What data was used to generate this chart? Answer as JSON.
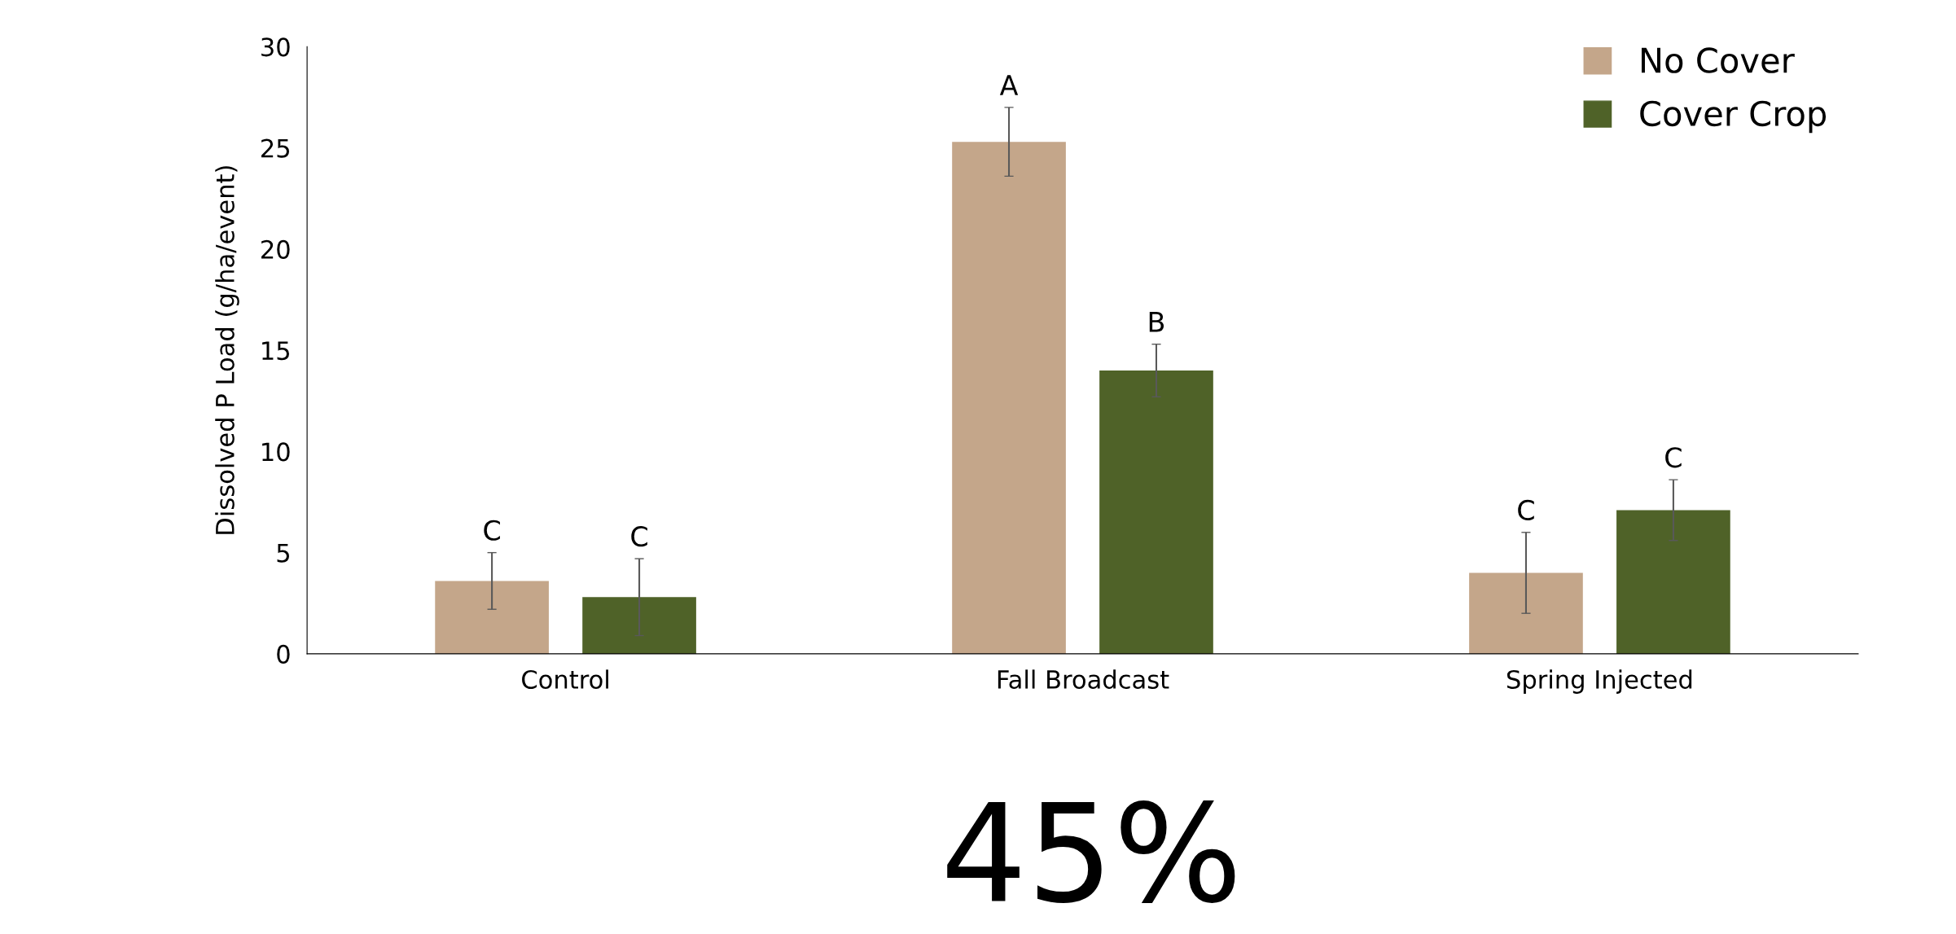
{
  "chart_data": {
    "type": "bar",
    "ylabel": "Dissolved P Load (g/ha/event)",
    "categories": [
      "Control",
      "Fall Broadcast",
      "Spring Injected"
    ],
    "series": [
      {
        "name": "No Cover",
        "color": "#c4a68a",
        "values": [
          3.6,
          25.3,
          4.0
        ],
        "errors": [
          1.4,
          1.7,
          2.0
        ]
      },
      {
        "name": "Cover Crop",
        "color": "#4f6228",
        "values": [
          2.8,
          14.0,
          7.1
        ],
        "errors": [
          1.9,
          1.3,
          1.5
        ]
      }
    ],
    "ylim": [
      0,
      30
    ],
    "yticks": [
      0,
      5,
      10,
      15,
      20,
      25,
      30
    ],
    "grid": false,
    "legend": "top right",
    "annotations": [
      "C",
      "C",
      "A",
      "B",
      "C",
      "C",
      "45%"
    ]
  }
}
